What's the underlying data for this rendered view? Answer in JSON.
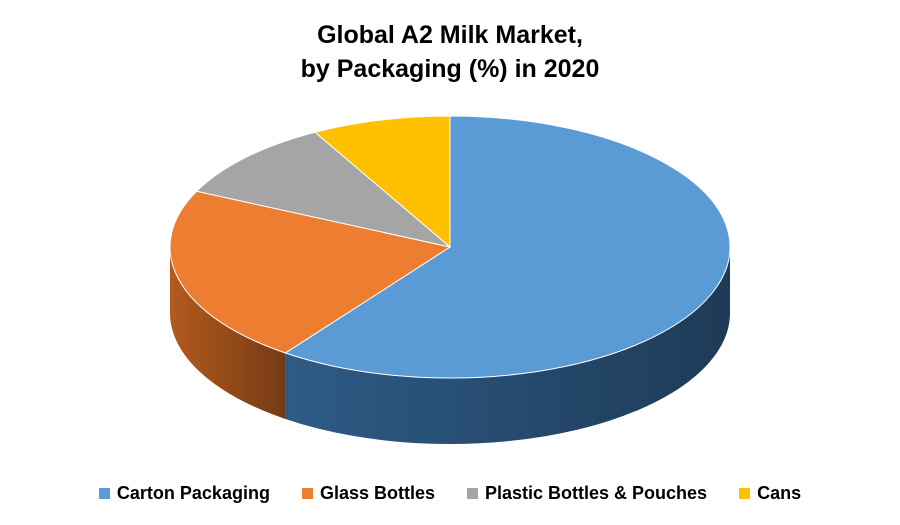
{
  "chart_data": {
    "type": "pie",
    "title_lines": [
      "Global A2 Milk Market,",
      "by Packaging (%) in 2020"
    ],
    "categories": [
      "Carton Packaging",
      "Glass Bottles",
      "Plastic Bottles & Pouches",
      "Cans"
    ],
    "values": [
      60,
      22,
      10,
      8
    ],
    "unit": "%",
    "colors": [
      "#5B9BD5",
      "#ED7D31",
      "#A5A5A5",
      "#FFC000"
    ],
    "side_colors": [
      "#2E5B86",
      "#B35A1E",
      "#6E6E6E",
      "#B38700"
    ],
    "style": "3d",
    "legend_position": "bottom"
  }
}
